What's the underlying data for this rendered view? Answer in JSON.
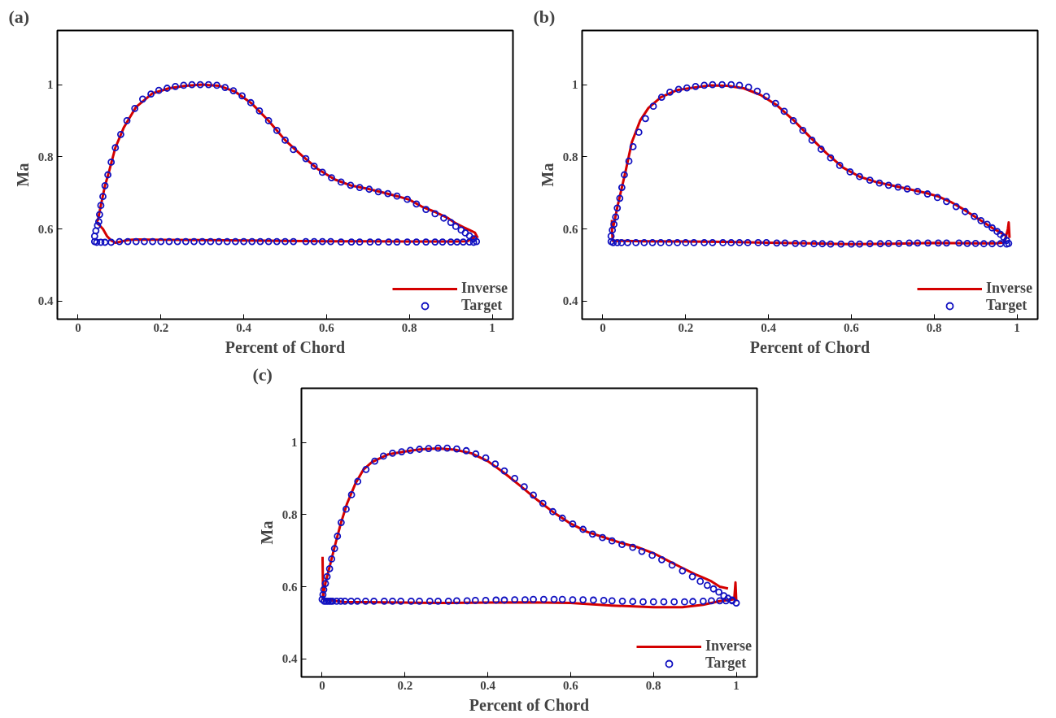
{
  "chart_data": [
    {
      "type": "line",
      "title": "(a)",
      "xlabel": "Percent of Chord",
      "ylabel": "Ma",
      "xlim": [
        -0.05,
        1.05
      ],
      "ylim": [
        0.35,
        1.15
      ],
      "xticks": [
        0,
        0.2,
        0.4,
        0.6,
        0.8,
        1
      ],
      "yticks": [
        0.4,
        0.6,
        0.8,
        1
      ],
      "grid": false,
      "legend": "bottom right",
      "series": [
        {
          "name": "Inverse",
          "color": "#d40000",
          "line_style": "solid",
          "x": [
            0.045,
            0.048,
            0.055,
            0.065,
            0.075,
            0.09,
            0.11,
            0.14,
            0.18,
            0.22,
            0.26,
            0.3,
            0.34,
            0.38,
            0.42,
            0.46,
            0.5,
            0.54,
            0.58,
            0.62,
            0.66,
            0.7,
            0.74,
            0.77,
            0.8,
            0.83,
            0.86,
            0.89,
            0.91,
            0.93,
            0.945,
            0.958,
            0.965
          ],
          "values": [
            0.62,
            0.625,
            0.665,
            0.72,
            0.76,
            0.825,
            0.88,
            0.938,
            0.976,
            0.99,
            0.997,
            1.0,
            0.997,
            0.98,
            0.947,
            0.9,
            0.846,
            0.804,
            0.765,
            0.737,
            0.72,
            0.711,
            0.7,
            0.691,
            0.681,
            0.662,
            0.648,
            0.632,
            0.617,
            0.605,
            0.597,
            0.59,
            0.575
          ]
        },
        {
          "color": "#d40000",
          "line_style": "solid",
          "x": [
            0.045,
            0.05,
            0.06,
            0.07,
            0.08,
            0.09,
            0.1,
            0.12,
            0.14,
            0.2,
            0.3,
            0.4,
            0.5,
            0.6,
            0.7,
            0.8,
            0.9,
            0.94,
            0.955,
            0.962
          ],
          "values": [
            0.62,
            0.612,
            0.6,
            0.58,
            0.568,
            0.562,
            0.564,
            0.569,
            0.571,
            0.57,
            0.569,
            0.568,
            0.567,
            0.566,
            0.566,
            0.565,
            0.565,
            0.566,
            0.575,
            0.582
          ]
        },
        {
          "name": "Target",
          "type": "scatter",
          "color": "#1010c0",
          "marker": "circle",
          "x": [
            0.04,
            0.04,
            0.043,
            0.047,
            0.05,
            0.052,
            0.055,
            0.06,
            0.065,
            0.072,
            0.08,
            0.09,
            0.103,
            0.118,
            0.137,
            0.156,
            0.176,
            0.195,
            0.215,
            0.235,
            0.255,
            0.275,
            0.295,
            0.315,
            0.335,
            0.355,
            0.375,
            0.396,
            0.417,
            0.438,
            0.46,
            0.48,
            0.5,
            0.52,
            0.55,
            0.57,
            0.59,
            0.612,
            0.635,
            0.658,
            0.68,
            0.703,
            0.725,
            0.748,
            0.77,
            0.795,
            0.817,
            0.84,
            0.862,
            0.883,
            0.9,
            0.912,
            0.925,
            0.935,
            0.945,
            0.955,
            0.962,
            0.045,
            0.055,
            0.065,
            0.08,
            0.1,
            0.12,
            0.14,
            0.16,
            0.18,
            0.2,
            0.22,
            0.24,
            0.26,
            0.28,
            0.3,
            0.32,
            0.34,
            0.36,
            0.38,
            0.4,
            0.42,
            0.44,
            0.46,
            0.48,
            0.5,
            0.52,
            0.55,
            0.57,
            0.59,
            0.61,
            0.635,
            0.66,
            0.68,
            0.705,
            0.725,
            0.75,
            0.77,
            0.795,
            0.817,
            0.84,
            0.862,
            0.88,
            0.9,
            0.915,
            0.93,
            0.945,
            0.955
          ],
          "values": [
            0.565,
            0.58,
            0.595,
            0.61,
            0.62,
            0.64,
            0.665,
            0.69,
            0.72,
            0.75,
            0.785,
            0.825,
            0.862,
            0.9,
            0.934,
            0.96,
            0.974,
            0.984,
            0.99,
            0.995,
            0.998,
            1.0,
            1.0,
            1.0,
            0.998,
            0.992,
            0.983,
            0.969,
            0.95,
            0.927,
            0.9,
            0.873,
            0.846,
            0.82,
            0.795,
            0.774,
            0.757,
            0.742,
            0.73,
            0.721,
            0.715,
            0.71,
            0.703,
            0.698,
            0.691,
            0.682,
            0.669,
            0.654,
            0.642,
            0.63,
            0.618,
            0.607,
            0.597,
            0.589,
            0.581,
            0.573,
            0.565,
            0.563,
            0.563,
            0.563,
            0.563,
            0.565,
            0.565,
            0.565,
            0.565,
            0.565,
            0.565,
            0.565,
            0.565,
            0.565,
            0.565,
            0.565,
            0.565,
            0.565,
            0.565,
            0.565,
            0.565,
            0.565,
            0.565,
            0.565,
            0.565,
            0.565,
            0.565,
            0.565,
            0.565,
            0.565,
            0.565,
            0.564,
            0.564,
            0.564,
            0.564,
            0.564,
            0.564,
            0.564,
            0.564,
            0.564,
            0.564,
            0.564,
            0.564,
            0.564,
            0.564,
            0.564,
            0.564,
            0.563
          ]
        }
      ]
    },
    {
      "type": "line",
      "title": "(b)",
      "xlabel": "Percent of Chord",
      "ylabel": "Ma",
      "xlim": [
        -0.05,
        1.05
      ],
      "ylim": [
        0.35,
        1.15
      ],
      "xticks": [
        0,
        0.2,
        0.4,
        0.6,
        0.8,
        1
      ],
      "yticks": [
        0.4,
        0.6,
        0.8,
        1
      ],
      "grid": false,
      "legend": "bottom right",
      "series": [
        {
          "name": "Inverse",
          "color": "#d40000",
          "line_style": "solid",
          "x": [
            0.024,
            0.028,
            0.035,
            0.045,
            0.055,
            0.07,
            0.09,
            0.11,
            0.14,
            0.18,
            0.22,
            0.26,
            0.3,
            0.34,
            0.38,
            0.42,
            0.46,
            0.5,
            0.54,
            0.58,
            0.62,
            0.66,
            0.7,
            0.74,
            0.78,
            0.81,
            0.84,
            0.87,
            0.9,
            0.92,
            0.94,
            0.96,
            0.975
          ],
          "values": [
            0.6,
            0.62,
            0.66,
            0.71,
            0.76,
            0.84,
            0.9,
            0.935,
            0.965,
            0.985,
            0.992,
            0.998,
            0.997,
            0.99,
            0.972,
            0.943,
            0.902,
            0.855,
            0.81,
            0.77,
            0.745,
            0.73,
            0.72,
            0.71,
            0.7,
            0.69,
            0.675,
            0.655,
            0.633,
            0.618,
            0.603,
            0.59,
            0.58
          ]
        },
        {
          "color": "#d40000",
          "line_style": "solid",
          "x": [
            0.022,
            0.022,
            0.024,
            0.05,
            0.1,
            0.2,
            0.3,
            0.4,
            0.5,
            0.6,
            0.7,
            0.8,
            0.9,
            0.95,
            0.97,
            0.978,
            0.98,
            0.982
          ],
          "values": [
            0.625,
            0.6,
            0.567,
            0.567,
            0.566,
            0.565,
            0.564,
            0.562,
            0.56,
            0.558,
            0.559,
            0.561,
            0.56,
            0.56,
            0.563,
            0.6,
            0.618,
            0.575
          ]
        },
        {
          "name": "Target",
          "type": "scatter",
          "color": "#1010c0",
          "marker": "circle",
          "x": [
            0.02,
            0.02,
            0.023,
            0.027,
            0.031,
            0.035,
            0.041,
            0.046,
            0.052,
            0.063,
            0.073,
            0.087,
            0.103,
            0.122,
            0.142,
            0.162,
            0.183,
            0.203,
            0.224,
            0.245,
            0.265,
            0.288,
            0.31,
            0.33,
            0.352,
            0.373,
            0.395,
            0.417,
            0.438,
            0.46,
            0.483,
            0.505,
            0.527,
            0.55,
            0.572,
            0.597,
            0.62,
            0.645,
            0.668,
            0.69,
            0.713,
            0.735,
            0.76,
            0.784,
            0.808,
            0.83,
            0.853,
            0.875,
            0.897,
            0.913,
            0.928,
            0.94,
            0.952,
            0.96,
            0.968,
            0.975,
            0.98,
            0.025,
            0.035,
            0.045,
            0.06,
            0.08,
            0.1,
            0.12,
            0.14,
            0.16,
            0.18,
            0.2,
            0.22,
            0.245,
            0.265,
            0.29,
            0.31,
            0.33,
            0.35,
            0.375,
            0.395,
            0.42,
            0.44,
            0.465,
            0.485,
            0.51,
            0.53,
            0.55,
            0.575,
            0.6,
            0.62,
            0.645,
            0.67,
            0.69,
            0.715,
            0.74,
            0.76,
            0.785,
            0.81,
            0.83,
            0.86,
            0.88,
            0.9,
            0.92,
            0.94,
            0.96,
            0.975
          ],
          "values": [
            0.565,
            0.58,
            0.597,
            0.613,
            0.633,
            0.658,
            0.685,
            0.715,
            0.75,
            0.788,
            0.828,
            0.868,
            0.906,
            0.94,
            0.965,
            0.979,
            0.987,
            0.991,
            0.995,
            0.998,
            1.0,
            1.0,
            1.0,
            0.998,
            0.993,
            0.982,
            0.967,
            0.948,
            0.926,
            0.9,
            0.873,
            0.846,
            0.821,
            0.797,
            0.776,
            0.758,
            0.745,
            0.735,
            0.727,
            0.721,
            0.716,
            0.711,
            0.704,
            0.697,
            0.687,
            0.676,
            0.662,
            0.648,
            0.635,
            0.623,
            0.613,
            0.603,
            0.593,
            0.585,
            0.577,
            0.568,
            0.56,
            0.562,
            0.562,
            0.562,
            0.562,
            0.562,
            0.562,
            0.562,
            0.562,
            0.562,
            0.562,
            0.562,
            0.562,
            0.562,
            0.562,
            0.562,
            0.562,
            0.562,
            0.562,
            0.562,
            0.562,
            0.561,
            0.561,
            0.56,
            0.56,
            0.559,
            0.559,
            0.558,
            0.558,
            0.558,
            0.558,
            0.559,
            0.559,
            0.56,
            0.56,
            0.561,
            0.561,
            0.561,
            0.561,
            0.561,
            0.561,
            0.56,
            0.56,
            0.559,
            0.559,
            0.559,
            0.558
          ]
        }
      ]
    },
    {
      "type": "line",
      "title": "(c)",
      "xlabel": "Percent of Chord",
      "ylabel": "Ma",
      "xlim": [
        -0.05,
        1.05
      ],
      "ylim": [
        0.35,
        1.15
      ],
      "xticks": [
        0,
        0.2,
        0.4,
        0.6,
        0.8,
        1
      ],
      "yticks": [
        0.4,
        0.6,
        0.8,
        1
      ],
      "grid": false,
      "legend": "bottom right",
      "series": [
        {
          "name": "Inverse",
          "color": "#d40000",
          "line_style": "solid",
          "x": [
            0.001,
            0.003,
            0.008,
            0.018,
            0.03,
            0.045,
            0.06,
            0.08,
            0.1,
            0.12,
            0.16,
            0.2,
            0.24,
            0.28,
            0.32,
            0.36,
            0.4,
            0.44,
            0.48,
            0.52,
            0.56,
            0.6,
            0.64,
            0.68,
            0.72,
            0.76,
            0.8,
            0.84,
            0.87,
            0.9,
            0.92,
            0.94,
            0.96,
            0.98
          ],
          "values": [
            0.565,
            0.58,
            0.61,
            0.655,
            0.71,
            0.775,
            0.83,
            0.885,
            0.925,
            0.945,
            0.967,
            0.975,
            0.981,
            0.983,
            0.98,
            0.97,
            0.948,
            0.915,
            0.878,
            0.84,
            0.805,
            0.775,
            0.752,
            0.737,
            0.722,
            0.71,
            0.693,
            0.669,
            0.652,
            0.635,
            0.625,
            0.615,
            0.6,
            0.595
          ]
        },
        {
          "color": "#d40000",
          "line_style": "solid",
          "x": [
            0.001,
            0.002,
            0.003,
            0.05,
            0.2,
            0.3,
            0.4,
            0.5,
            0.6,
            0.7,
            0.8,
            0.87,
            0.92,
            0.96,
            0.995,
            0.998,
            1.0
          ],
          "values": [
            0.683,
            0.6,
            0.565,
            0.558,
            0.556,
            0.555,
            0.556,
            0.557,
            0.555,
            0.548,
            0.543,
            0.543,
            0.55,
            0.56,
            0.565,
            0.612,
            0.56
          ]
        },
        {
          "name": "Target",
          "type": "scatter",
          "color": "#1010c0",
          "marker": "circle",
          "x": [
            0.0,
            0.002,
            0.004,
            0.008,
            0.012,
            0.018,
            0.023,
            0.03,
            0.037,
            0.046,
            0.058,
            0.071,
            0.086,
            0.106,
            0.127,
            0.148,
            0.17,
            0.192,
            0.213,
            0.235,
            0.257,
            0.28,
            0.302,
            0.325,
            0.348,
            0.371,
            0.395,
            0.418,
            0.44,
            0.465,
            0.488,
            0.51,
            0.533,
            0.557,
            0.58,
            0.605,
            0.63,
            0.653,
            0.677,
            0.7,
            0.724,
            0.75,
            0.772,
            0.797,
            0.82,
            0.845,
            0.87,
            0.894,
            0.913,
            0.93,
            0.945,
            0.958,
            0.97,
            0.98,
            0.99,
            1.0,
            0.005,
            0.01,
            0.015,
            0.02,
            0.025,
            0.035,
            0.045,
            0.055,
            0.07,
            0.085,
            0.105,
            0.125,
            0.15,
            0.17,
            0.19,
            0.215,
            0.235,
            0.26,
            0.28,
            0.305,
            0.325,
            0.35,
            0.37,
            0.395,
            0.42,
            0.44,
            0.465,
            0.49,
            0.51,
            0.535,
            0.56,
            0.58,
            0.605,
            0.63,
            0.655,
            0.68,
            0.7,
            0.725,
            0.75,
            0.775,
            0.8,
            0.825,
            0.85,
            0.875,
            0.895,
            0.92,
            0.94,
            0.96,
            0.975,
            0.99
          ],
          "values": [
            0.565,
            0.578,
            0.592,
            0.609,
            0.628,
            0.65,
            0.677,
            0.706,
            0.74,
            0.778,
            0.815,
            0.855,
            0.892,
            0.925,
            0.948,
            0.962,
            0.97,
            0.974,
            0.978,
            0.981,
            0.983,
            0.984,
            0.984,
            0.982,
            0.977,
            0.968,
            0.957,
            0.94,
            0.921,
            0.9,
            0.877,
            0.854,
            0.831,
            0.808,
            0.79,
            0.774,
            0.759,
            0.746,
            0.736,
            0.727,
            0.717,
            0.709,
            0.698,
            0.687,
            0.675,
            0.66,
            0.644,
            0.628,
            0.615,
            0.604,
            0.594,
            0.585,
            0.575,
            0.568,
            0.563,
            0.555,
            0.56,
            0.56,
            0.56,
            0.56,
            0.56,
            0.56,
            0.56,
            0.56,
            0.56,
            0.56,
            0.56,
            0.56,
            0.56,
            0.56,
            0.56,
            0.56,
            0.56,
            0.56,
            0.56,
            0.56,
            0.561,
            0.561,
            0.562,
            0.562,
            0.563,
            0.563,
            0.564,
            0.564,
            0.565,
            0.565,
            0.565,
            0.565,
            0.564,
            0.564,
            0.563,
            0.562,
            0.561,
            0.56,
            0.559,
            0.558,
            0.558,
            0.558,
            0.558,
            0.558,
            0.559,
            0.56,
            0.561,
            0.561,
            0.561,
            0.561
          ]
        }
      ]
    }
  ]
}
